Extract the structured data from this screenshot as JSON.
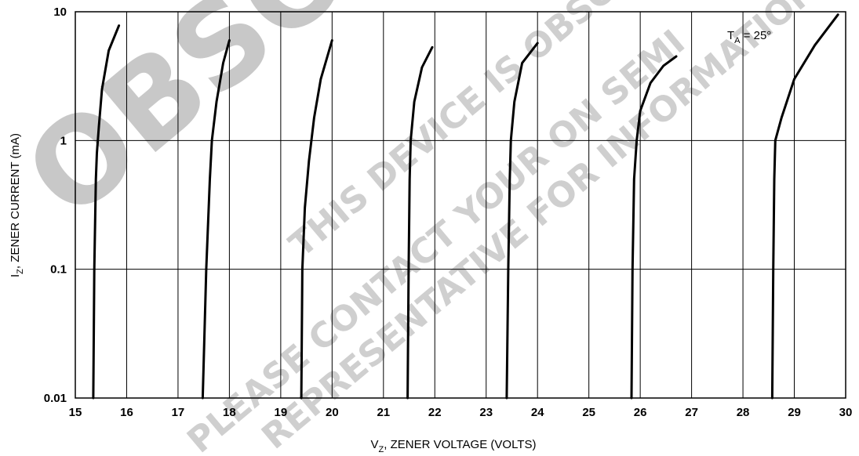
{
  "chart_data": {
    "type": "line",
    "xlabel": {
      "main": "V",
      "sub": "Z",
      "rest": ", ZENER VOLTAGE (VOLTS)"
    },
    "ylabel": {
      "main": "I",
      "sub": "Z",
      "rest": ", ZENER CURRENT (mA)"
    },
    "x_ticks": [
      "15",
      "16",
      "17",
      "18",
      "19",
      "20",
      "21",
      "22",
      "23",
      "24",
      "25",
      "26",
      "27",
      "28",
      "29",
      "30"
    ],
    "y_ticks": [
      "0.01",
      "0.1",
      "1",
      "10"
    ],
    "xlim": [
      15,
      30
    ],
    "ylim": [
      0.01,
      10
    ],
    "y_scale": "log",
    "grid": true,
    "annotation": {
      "main": "T",
      "sub": "A",
      "rest": " = 25°"
    },
    "series": [
      {
        "points": [
          [
            15.35,
            0.01
          ],
          [
            15.37,
            0.1
          ],
          [
            15.4,
            0.5
          ],
          [
            15.42,
            0.8
          ],
          [
            15.46,
            1.3
          ],
          [
            15.52,
            2.5
          ],
          [
            15.65,
            5.0
          ],
          [
            15.85,
            7.8
          ]
        ]
      },
      {
        "points": [
          [
            17.48,
            0.01
          ],
          [
            17.55,
            0.1
          ],
          [
            17.62,
            0.5
          ],
          [
            17.66,
            1.0
          ],
          [
            17.75,
            2.0
          ],
          [
            17.88,
            4.0
          ],
          [
            18.0,
            6.0
          ]
        ]
      },
      {
        "points": [
          [
            19.4,
            0.01
          ],
          [
            19.42,
            0.1
          ],
          [
            19.47,
            0.3
          ],
          [
            19.55,
            0.7
          ],
          [
            19.65,
            1.5
          ],
          [
            19.78,
            3.0
          ],
          [
            20.0,
            6.0
          ]
        ]
      },
      {
        "points": [
          [
            21.47,
            0.01
          ],
          [
            21.49,
            0.1
          ],
          [
            21.51,
            0.5
          ],
          [
            21.53,
            1.0
          ],
          [
            21.6,
            2.0
          ],
          [
            21.75,
            3.7
          ],
          [
            21.95,
            5.3
          ]
        ]
      },
      {
        "points": [
          [
            23.4,
            0.01
          ],
          [
            23.43,
            0.1
          ],
          [
            23.46,
            0.5
          ],
          [
            23.48,
            1.0
          ],
          [
            23.55,
            2.0
          ],
          [
            23.7,
            4.0
          ],
          [
            24.0,
            5.7
          ]
        ]
      },
      {
        "points": [
          [
            25.83,
            0.01
          ],
          [
            25.85,
            0.1
          ],
          [
            25.88,
            0.5
          ],
          [
            25.93,
            1.0
          ],
          [
            26.0,
            1.7
          ],
          [
            26.2,
            2.8
          ],
          [
            26.45,
            3.8
          ],
          [
            26.7,
            4.5
          ]
        ]
      },
      {
        "points": [
          [
            28.57,
            0.01
          ],
          [
            28.59,
            0.1
          ],
          [
            28.61,
            0.5
          ],
          [
            28.63,
            1.0
          ],
          [
            28.75,
            1.5
          ],
          [
            29.0,
            3.0
          ],
          [
            29.4,
            5.5
          ],
          [
            29.85,
            9.5
          ]
        ]
      }
    ]
  },
  "watermark": {
    "big": "OBSOLETE",
    "line1": "THIS DEVICE IS OBSOLETE",
    "line2": "PLEASE CONTACT YOUR ON SEMI",
    "line3": "REPRESENTATIVE FOR INFORMATION"
  }
}
